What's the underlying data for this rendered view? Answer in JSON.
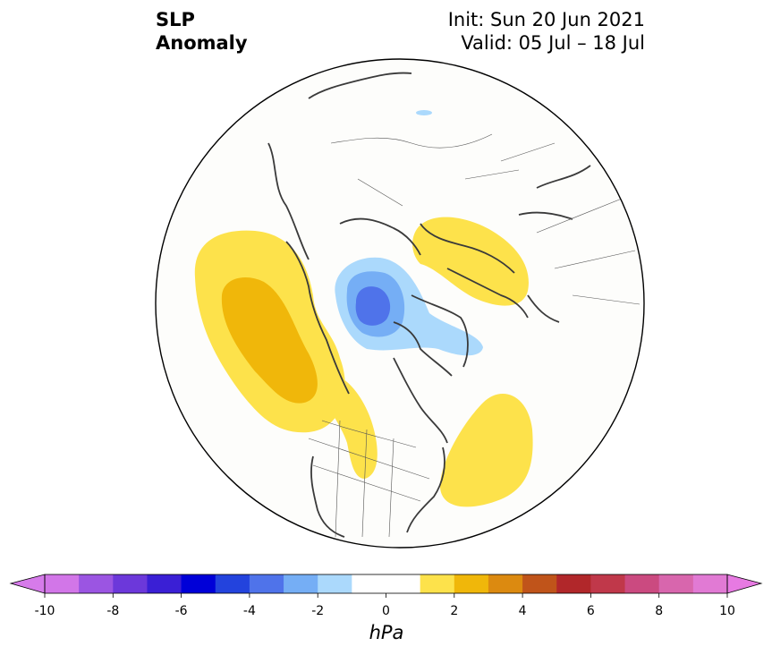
{
  "header": {
    "title_line1": "SLP",
    "title_line2": "Anomaly",
    "init": "Init: Sun 20 Jun 2021",
    "valid": "Valid: 05 Jul – 18 Jul"
  },
  "map": {
    "projection": "north polar stereographic",
    "background": "#fdfdfb",
    "anomaly_regions": [
      {
        "name": "northeast pacific high",
        "level_hpa": 1,
        "color": "#fde24b"
      },
      {
        "name": "northeast pacific high core",
        "level_hpa": 2,
        "color": "#f0b70a"
      },
      {
        "name": "northern europe high",
        "level_hpa": 1,
        "color": "#fde24b"
      },
      {
        "name": "western atlantic high",
        "level_hpa": 1,
        "color": "#fde24b"
      },
      {
        "name": "canadian arctic low",
        "level_hpa": -1,
        "color": "#abd9fc"
      },
      {
        "name": "canadian arctic low ring",
        "level_hpa": -2,
        "color": "#75aef5"
      },
      {
        "name": "canadian arctic low core",
        "level_hpa": -3,
        "color": "#4f73ea"
      }
    ]
  },
  "colorbar": {
    "unit": "hPa",
    "min": -10,
    "max": 10,
    "step": 1,
    "tick_labels": [
      "-10",
      "-8",
      "-6",
      "-4",
      "-2",
      "0",
      "2",
      "4",
      "6",
      "8",
      "10"
    ],
    "tick_values": [
      -10,
      -8,
      -6,
      -4,
      -2,
      0,
      2,
      4,
      6,
      8,
      10
    ],
    "extend": "both",
    "colors": [
      "#d276e8",
      "#9b55e2",
      "#6c38da",
      "#3a1fd5",
      "#0000d8",
      "#2343dd",
      "#4f73ea",
      "#75aef5",
      "#abd9fc",
      "#ffffff",
      "#ffffff",
      "#fde24b",
      "#f0b70a",
      "#dc8a10",
      "#c0541a",
      "#b1272a",
      "#c0384a",
      "#cb4a80",
      "#d866ad",
      "#e17ad4"
    ],
    "under_color": "#d67bea",
    "over_color": "#e77ae2"
  }
}
